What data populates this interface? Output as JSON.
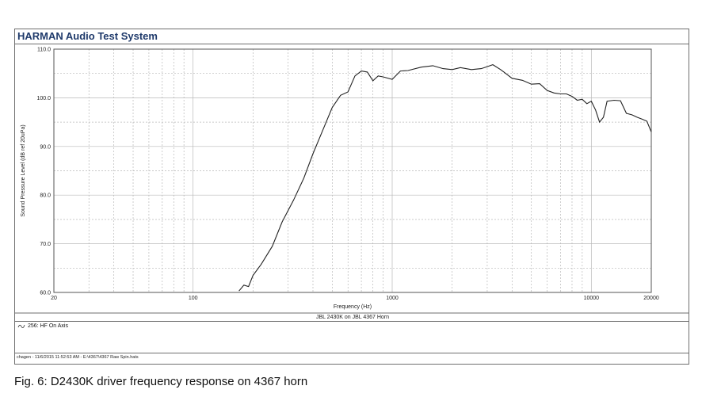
{
  "app": {
    "title": "HARMAN Audio Test System"
  },
  "legend": {
    "entry": "256: HF  On Axis"
  },
  "footer": {
    "text": "chagen - 11/6/2015 11:52:53 AM - E:\\4367\\4367 Raw Spin.hats"
  },
  "caption": "Fig. 6: D2430K driver frequency response on 4367 horn",
  "chart_data": {
    "type": "line",
    "title": "JBL 2430K on JBL 4367 Horn",
    "xlabel": "Frequency (Hz)",
    "ylabel": "Sound Pressure Level (dB ref 20uPa)",
    "xscale": "log",
    "xlim": [
      20,
      20000
    ],
    "ylim": [
      60,
      110
    ],
    "grid": true,
    "x_tick_labels": [
      "20",
      "100",
      "1000",
      "10000",
      "20000"
    ],
    "y_tick_labels": [
      "60.0",
      "70.0",
      "80.0",
      "90.0",
      "100.0",
      "110.0"
    ],
    "series": [
      {
        "name": "256: HF  On Axis",
        "color": "#222222",
        "x": [
          170,
          180,
          190,
          200,
          220,
          250,
          280,
          320,
          360,
          400,
          450,
          500,
          550,
          600,
          650,
          700,
          750,
          800,
          850,
          900,
          1000,
          1100,
          1200,
          1400,
          1600,
          1800,
          2000,
          2200,
          2500,
          2800,
          3000,
          3200,
          3500,
          4000,
          4500,
          5000,
          5500,
          6000,
          6500,
          7000,
          7500,
          8000,
          8500,
          9000,
          9500,
          10000,
          10500,
          11000,
          11500,
          12000,
          13000,
          14000,
          15000,
          16000,
          17000,
          18000,
          19000,
          20000
        ],
        "values": [
          60.3,
          61.5,
          61.2,
          63.5,
          65.8,
          69.5,
          74.5,
          79.0,
          83.5,
          88.5,
          93.5,
          98.0,
          100.5,
          101.2,
          104.5,
          105.5,
          105.3,
          103.5,
          104.5,
          104.3,
          103.8,
          105.5,
          105.6,
          106.3,
          106.6,
          106.0,
          105.8,
          106.2,
          105.8,
          106.0,
          106.4,
          106.8,
          105.8,
          104.0,
          103.6,
          102.8,
          102.9,
          101.5,
          101.0,
          100.8,
          100.8,
          100.3,
          99.5,
          99.7,
          98.8,
          99.3,
          97.5,
          95.0,
          96.0,
          99.3,
          99.5,
          99.4,
          96.8,
          96.5,
          96.0,
          95.6,
          95.2,
          93.0
        ]
      }
    ]
  }
}
